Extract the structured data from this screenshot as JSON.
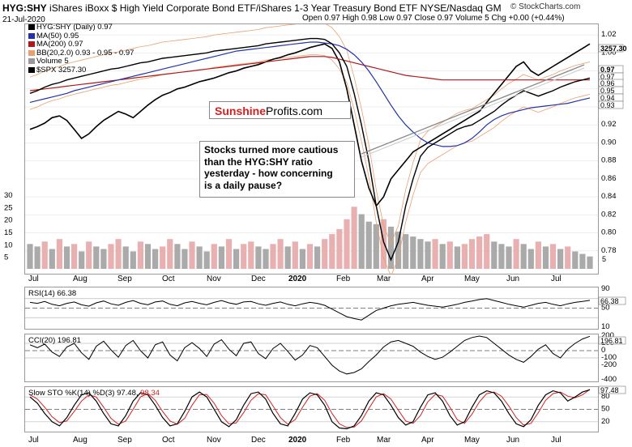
{
  "header": {
    "symbol": "HYG:SHY",
    "description": "iShares iBoxx $ High Yield Corporate Bond ETF/iShares 1-3 Year Treasury Bond ETF  NYSE/Nasdaq GM",
    "date": "21-Jul-2020",
    "ohlc": "Open 0.97  High 0.98  Low 0.97  Close 0.97  Volume 5  Chg +0.00 (+0.44%)",
    "copyright": "© StockCharts.com"
  },
  "legend": [
    {
      "label": "HYG:SHY (Daily) 0.97",
      "color": "#000000"
    },
    {
      "label": "MA(50) 0.95",
      "color": "#2233aa"
    },
    {
      "label": "MA(200) 0.97",
      "color": "#b01818"
    },
    {
      "label": "BB(20,2.0) 0.93 - 0.95 - 0.97",
      "color": "#e8a070"
    },
    {
      "label": "Volume 5",
      "color": "#999999"
    },
    {
      "label": "$SPX 3257.30",
      "color": "#000000"
    }
  ],
  "colors": {
    "price": "#000000",
    "ma50": "#2233aa",
    "ma200": "#b01818",
    "bb": "#e8a070",
    "vol_up": "#aaaaaa",
    "vol_down": "#e8b0b0",
    "area_pos": "#6a8a5a",
    "area_neg": "#8a5a5a",
    "stoch_k": "#000000",
    "stoch_d": "#d42020",
    "brand_red": "#d42020"
  },
  "logo": {
    "brand": "Sunshine",
    "suffix": "Profits.com"
  },
  "annotation": [
    "Stocks turned more cautious",
    "than the HYG:SHY ratio",
    "yesterday - how concerning",
    "is a daily pause?"
  ],
  "x_labels": [
    "Jul",
    "Aug",
    "Sep",
    "Oct",
    "Nov",
    "Dec",
    "2020",
    "Feb",
    "Mar",
    "Apr",
    "May",
    "Jun",
    "Jul"
  ],
  "chart_data": [
    {
      "type": "line",
      "title": "HYG:SHY (Daily) 0.97",
      "ylim": [
        0.76,
        1.03
      ],
      "y_ticks": [
        "1.02",
        "1.00",
        "0.98",
        "0.96",
        "0.94",
        "0.92",
        "0.90",
        "0.88",
        "0.86",
        "0.84",
        "0.82",
        "0.80",
        "0.78"
      ],
      "right_labels": [
        "3257.30",
        "0.97",
        "0.97",
        "0.96",
        "0.95",
        "0.94",
        "0.93"
      ],
      "series": [
        {
          "name": "HYG:SHY",
          "values": [
            0.955,
            0.958,
            0.962,
            0.965,
            0.967,
            0.97,
            0.972,
            0.974,
            0.976,
            0.978,
            0.98,
            0.982,
            0.983,
            0.985,
            0.987,
            0.989,
            0.99,
            0.992,
            0.994,
            0.995,
            0.996,
            0.997,
            0.998,
            0.999,
            1.0,
            1.002,
            1.003,
            1.004,
            1.005,
            1.006,
            1.007,
            1.008,
            1.01,
            1.011,
            1.012,
            1.013,
            1.014,
            1.015,
            1.016,
            1.016,
            1.015,
            1.01,
            1.0,
            0.985,
            0.955,
            0.92,
            0.88,
            0.83,
            0.79,
            0.77,
            0.79,
            0.83,
            0.86,
            0.885,
            0.895,
            0.9,
            0.905,
            0.91,
            0.915,
            0.918,
            0.92,
            0.925,
            0.93,
            0.935,
            0.942,
            0.948,
            0.953,
            0.958,
            0.955,
            0.952,
            0.955,
            0.958,
            0.962,
            0.965,
            0.968,
            0.97,
            0.972
          ]
        },
        {
          "name": "MA(50)",
          "values": [
            0.945,
            0.947,
            0.949,
            0.951,
            0.953,
            0.955,
            0.958,
            0.96,
            0.962,
            0.964,
            0.966,
            0.968,
            0.97,
            0.972,
            0.974,
            0.976,
            0.978,
            0.98,
            0.982,
            0.984,
            0.986,
            0.988,
            0.99,
            0.992,
            0.994,
            0.996,
            0.998,
            1.0,
            1.002,
            1.003,
            1.004,
            1.005,
            1.006,
            1.007,
            1.008,
            1.009,
            1.01,
            1.011,
            1.012,
            1.012,
            1.011,
            1.01,
            1.008,
            1.004,
            0.998,
            0.99,
            0.98,
            0.968,
            0.955,
            0.942,
            0.93,
            0.92,
            0.912,
            0.905,
            0.9,
            0.898,
            0.896,
            0.896,
            0.897,
            0.9,
            0.905,
            0.912,
            0.92,
            0.926,
            0.93,
            0.933,
            0.935,
            0.937,
            0.939,
            0.94,
            0.941,
            0.942,
            0.943,
            0.944,
            0.946,
            0.948,
            0.95
          ]
        },
        {
          "name": "MA(200)",
          "values": [
            0.958,
            0.959,
            0.96,
            0.961,
            0.962,
            0.963,
            0.964,
            0.965,
            0.966,
            0.967,
            0.968,
            0.969,
            0.97,
            0.971,
            0.972,
            0.973,
            0.974,
            0.975,
            0.976,
            0.977,
            0.978,
            0.979,
            0.98,
            0.981,
            0.982,
            0.983,
            0.984,
            0.985,
            0.986,
            0.987,
            0.988,
            0.989,
            0.99,
            0.991,
            0.992,
            0.993,
            0.994,
            0.995,
            0.996,
            0.996,
            0.996,
            0.995,
            0.993,
            0.991,
            0.989,
            0.987,
            0.985,
            0.983,
            0.981,
            0.979,
            0.977,
            0.975,
            0.974,
            0.973,
            0.972,
            0.971,
            0.97,
            0.97,
            0.97,
            0.97,
            0.97,
            0.97,
            0.97,
            0.97,
            0.97,
            0.97,
            0.97,
            0.97,
            0.97,
            0.97,
            0.97,
            0.97,
            0.97,
            0.97,
            0.97,
            0.97,
            0.97
          ]
        },
        {
          "name": "$SPX",
          "values": [
            0.915,
            0.918,
            0.922,
            0.928,
            0.93,
            0.925,
            0.915,
            0.905,
            0.91,
            0.918,
            0.925,
            0.93,
            0.935,
            0.932,
            0.928,
            0.935,
            0.942,
            0.948,
            0.953,
            0.956,
            0.96,
            0.962,
            0.965,
            0.968,
            0.97,
            0.972,
            0.975,
            0.978,
            0.98,
            0.983,
            0.985,
            0.987,
            0.99,
            0.993,
            0.995,
            0.998,
            1.0,
            1.003,
            1.006,
            1.008,
            1.01,
            1.005,
            0.99,
            0.96,
            0.92,
            0.88,
            0.85,
            0.83,
            0.84,
            0.86,
            0.87,
            0.88,
            0.89,
            0.895,
            0.9,
            0.905,
            0.91,
            0.915,
            0.92,
            0.925,
            0.93,
            0.935,
            0.945,
            0.955,
            0.965,
            0.975,
            0.985,
            0.99,
            0.98,
            0.975,
            0.98,
            0.985,
            0.99,
            0.995,
            1.0,
            1.005,
            1.01
          ]
        }
      ]
    },
    {
      "type": "bar",
      "title": "Volume 5",
      "ylim": [
        0,
        30
      ],
      "y_ticks": [
        "30",
        "25",
        "20",
        "15",
        "10",
        "5"
      ],
      "right_labels": [
        "5"
      ],
      "values": [
        10,
        9,
        11,
        8,
        12,
        9,
        10,
        7,
        11,
        9,
        8,
        10,
        12,
        9,
        7,
        11,
        10,
        8,
        9,
        12,
        10,
        8,
        11,
        9,
        7,
        10,
        9,
        12,
        8,
        10,
        11,
        9,
        8,
        10,
        12,
        9,
        11,
        8,
        10,
        9,
        12,
        14,
        16,
        20,
        25,
        22,
        19,
        18,
        20,
        17,
        15,
        14,
        13,
        12,
        11,
        12,
        10,
        11,
        9,
        10,
        12,
        13,
        14,
        11,
        10,
        9,
        12,
        10,
        8,
        11,
        9,
        10,
        8,
        9,
        7,
        6,
        5
      ]
    },
    {
      "type": "line",
      "title": "RSI(14) 66.38",
      "ylim": [
        10,
        90
      ],
      "y_ticks": [
        "90",
        "50",
        "10"
      ],
      "right_labels": [
        "66.38"
      ],
      "values": [
        62,
        60,
        64,
        58,
        55,
        60,
        63,
        57,
        54,
        61,
        65,
        59,
        56,
        62,
        66,
        60,
        57,
        63,
        65,
        58,
        55,
        61,
        64,
        60,
        57,
        62,
        66,
        61,
        58,
        63,
        64,
        59,
        56,
        60,
        63,
        58,
        55,
        59,
        62,
        60,
        56,
        48,
        40,
        32,
        28,
        25,
        35,
        45,
        50,
        55,
        58,
        60,
        62,
        59,
        56,
        54,
        52,
        55,
        58,
        62,
        65,
        68,
        70,
        66,
        62,
        58,
        55,
        52,
        56,
        60,
        62,
        58,
        55,
        59,
        62,
        64,
        66.38
      ]
    },
    {
      "type": "line",
      "title": "CCI(20) 196.81",
      "ylim": [
        -400,
        200
      ],
      "y_ticks": [
        "200",
        "100",
        "0",
        "-100",
        "-200",
        "-400"
      ],
      "right_labels": [
        "196.81"
      ],
      "values": [
        80,
        40,
        90,
        -20,
        -80,
        50,
        100,
        -30,
        -120,
        60,
        130,
        10,
        -90,
        70,
        140,
        0,
        -100,
        80,
        120,
        -60,
        -140,
        40,
        110,
        30,
        -80,
        90,
        150,
        20,
        -70,
        100,
        120,
        -40,
        -110,
        30,
        100,
        -10,
        -130,
        -60,
        70,
        40,
        -80,
        -200,
        -280,
        -320,
        -300,
        -250,
        -150,
        -60,
        50,
        120,
        140,
        100,
        60,
        -20,
        -80,
        -120,
        -90,
        -20,
        60,
        140,
        180,
        200,
        180,
        100,
        20,
        -60,
        -120,
        -160,
        -80,
        20,
        80,
        -40,
        -100,
        20,
        100,
        160,
        196.81
      ]
    },
    {
      "type": "line",
      "title": "Slow STO %K(14) %D(3) 97.48, 98.34",
      "ylim": [
        0,
        100
      ],
      "y_ticks": [
        "80",
        "50",
        "20"
      ],
      "right_labels": [
        "97.48"
      ],
      "series": [
        {
          "name": "%K(14)",
          "values": [
            80,
            65,
            40,
            20,
            10,
            30,
            60,
            85,
            90,
            70,
            40,
            15,
            10,
            35,
            70,
            90,
            85,
            60,
            30,
            10,
            15,
            45,
            80,
            92,
            80,
            50,
            20,
            8,
            25,
            60,
            88,
            92,
            75,
            40,
            15,
            10,
            40,
            75,
            90,
            85,
            60,
            20,
            5,
            3,
            10,
            35,
            70,
            90,
            85,
            60,
            30,
            12,
            20,
            55,
            85,
            90,
            70,
            35,
            12,
            20,
            55,
            85,
            95,
            90,
            70,
            40,
            15,
            8,
            25,
            60,
            85,
            95,
            90,
            70,
            80,
            92,
            97.48
          ]
        },
        {
          "name": "%D(3)",
          "values": [
            85,
            75,
            55,
            32,
            18,
            22,
            45,
            70,
            85,
            80,
            55,
            28,
            14,
            22,
            50,
            80,
            88,
            72,
            45,
            22,
            14,
            28,
            60,
            85,
            86,
            65,
            35,
            15,
            17,
            42,
            72,
            88,
            85,
            58,
            30,
            14,
            25,
            55,
            82,
            88,
            72,
            40,
            15,
            6,
            7,
            22,
            52,
            80,
            88,
            75,
            48,
            22,
            16,
            35,
            68,
            86,
            82,
            55,
            25,
            16,
            38,
            68,
            88,
            92,
            82,
            58,
            30,
            12,
            16,
            42,
            72,
            88,
            92,
            82,
            78,
            85,
            98.34
          ]
        }
      ]
    }
  ]
}
